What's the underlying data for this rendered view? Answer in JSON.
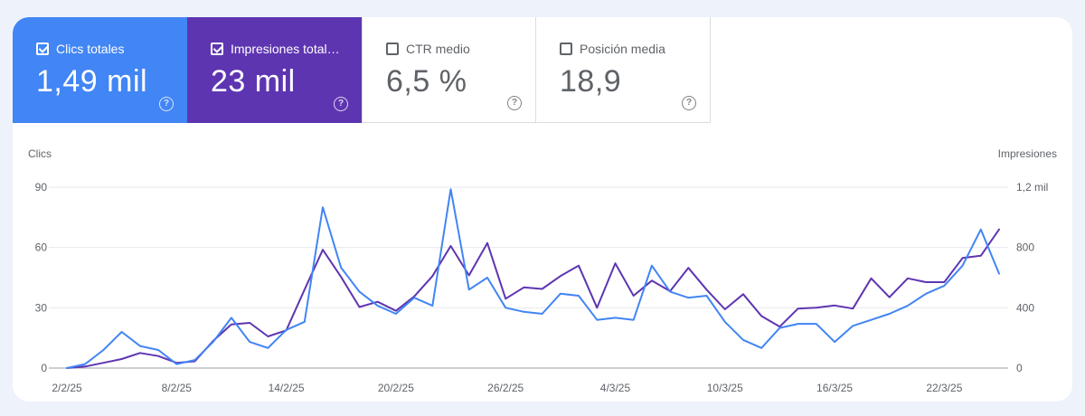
{
  "tiles": [
    {
      "label": "Clics totales",
      "value": "1,49 mil",
      "checked": true
    },
    {
      "label": "Impresiones totales",
      "label_display": "Impresiones total…",
      "value": "23 mil",
      "checked": true
    },
    {
      "label": "CTR medio",
      "value": "6,5 %",
      "checked": false
    },
    {
      "label": "Posición media",
      "value": "18,9",
      "checked": false
    }
  ],
  "colors": {
    "clicks": "#4285f4",
    "impressions": "#5e35b1"
  },
  "chart_data": {
    "type": "line",
    "left_axis_title": "Clics",
    "right_axis_title": "Impresiones",
    "left_ticks": [
      "0",
      "30",
      "60",
      "90"
    ],
    "right_ticks": [
      "0",
      "400",
      "800",
      "1,2 mil"
    ],
    "x_labels": [
      "2/2/25",
      "8/2/25",
      "14/2/25",
      "20/2/25",
      "26/2/25",
      "4/3/25",
      "10/3/25",
      "16/3/25",
      "22/3/25"
    ],
    "ylim_left": [
      0,
      90
    ],
    "ylim_right": [
      0,
      1200
    ],
    "series": [
      {
        "name": "Clics totales",
        "axis": "left",
        "values": [
          0,
          2,
          9,
          18,
          11,
          9,
          2,
          4,
          13,
          25,
          13,
          10,
          19,
          23,
          80,
          50,
          38,
          31,
          27,
          35,
          31,
          89,
          39,
          45,
          30,
          28,
          27,
          37,
          36,
          24,
          25,
          24,
          51,
          38,
          35,
          36,
          23,
          14,
          10,
          20,
          22,
          22,
          13,
          21,
          24,
          27,
          31,
          37,
          41,
          51,
          69,
          47
        ]
      },
      {
        "name": "Impresiones totales",
        "axis": "right",
        "values": [
          0,
          10,
          35,
          60,
          100,
          80,
          35,
          45,
          180,
          290,
          300,
          210,
          250,
          520,
          785,
          605,
          405,
          440,
          380,
          475,
          610,
          810,
          615,
          830,
          460,
          535,
          525,
          610,
          680,
          400,
          695,
          480,
          580,
          510,
          665,
          520,
          390,
          490,
          345,
          275,
          395,
          400,
          415,
          395,
          595,
          470,
          595,
          570,
          570,
          730,
          745,
          920
        ]
      }
    ]
  }
}
